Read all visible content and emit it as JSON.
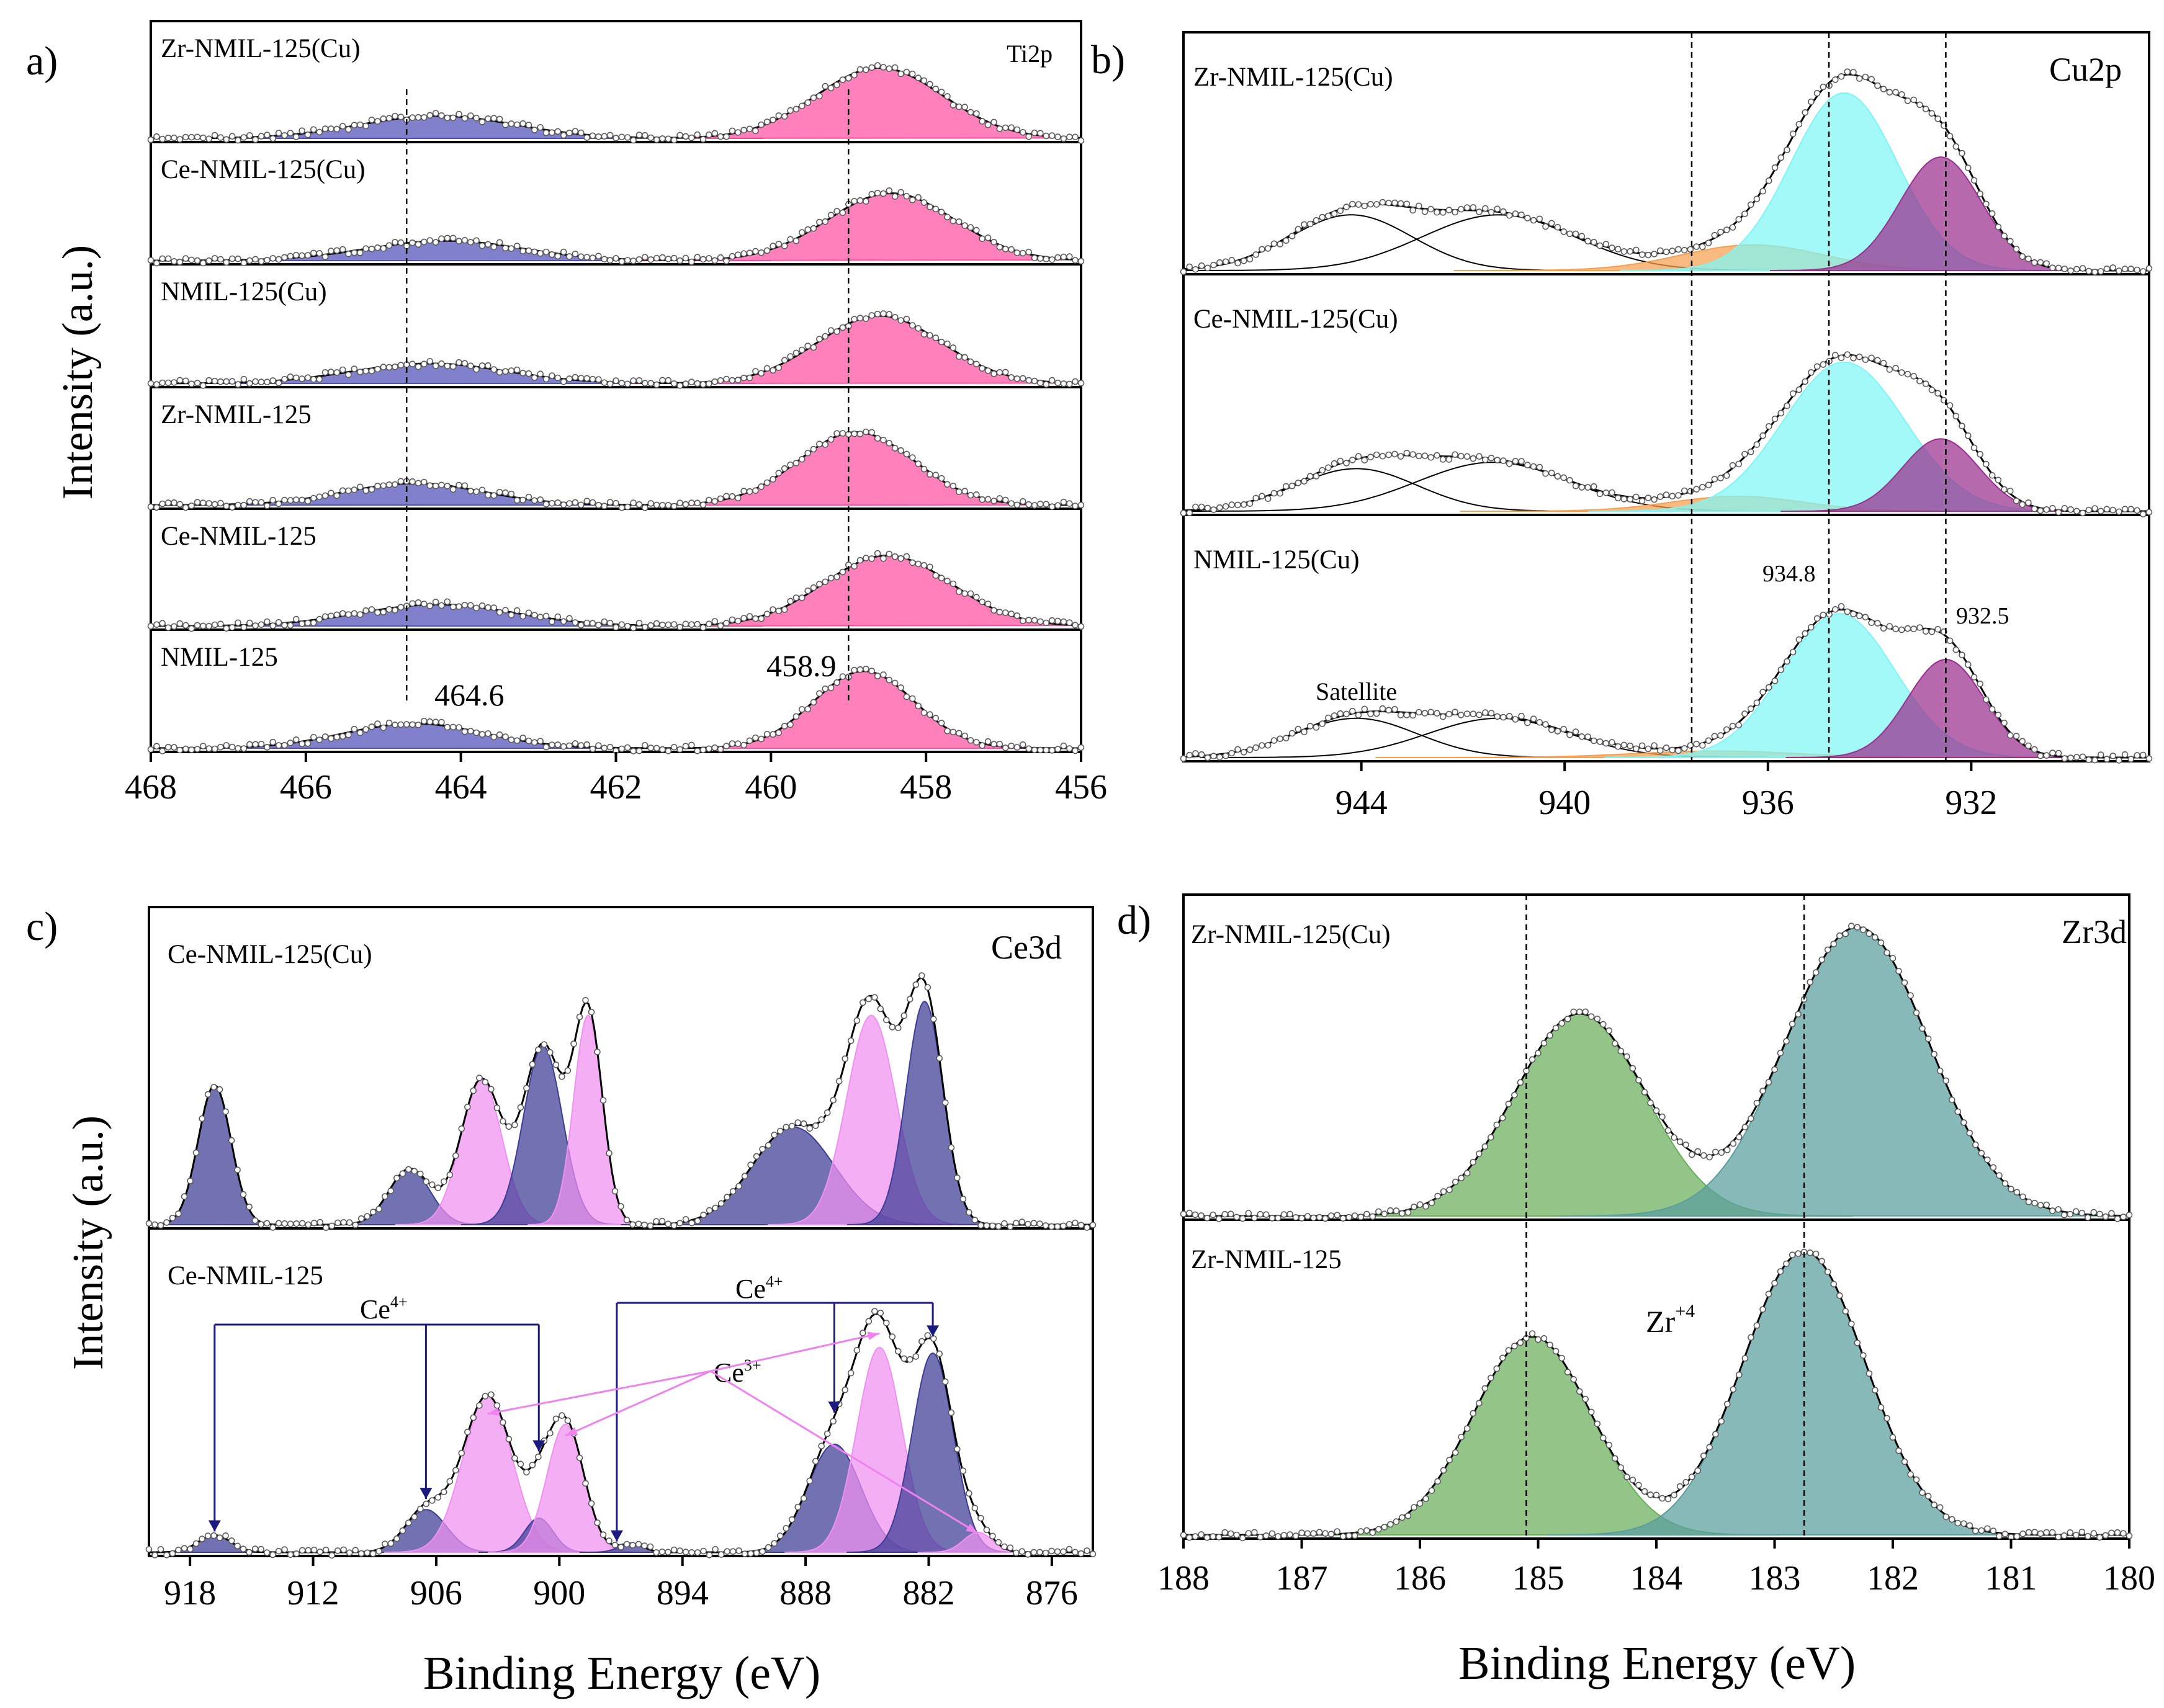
{
  "figure": {
    "axis_label": "Intensity (a.u.)",
    "x_label": "Binding Energy (eV)"
  },
  "chart_data": [
    {
      "id": "a",
      "type": "line",
      "panel_label": "a)",
      "element": "Ti2p",
      "xlabel": "",
      "ylabel": "Intensity (a.u.)",
      "xlim": [
        468,
        456
      ],
      "xticks": [
        468,
        466,
        464,
        462,
        460,
        458,
        456
      ],
      "series": [
        {
          "name": "Zr-NMIL-125(Cu)",
          "peaks": [
            {
              "center": 464.3,
              "height": 0.23,
              "sigma": 1.0,
              "color": "#4f4fb8"
            },
            {
              "center": 458.6,
              "height": 0.72,
              "sigma": 0.82,
              "color": "#ff4fa0"
            }
          ]
        },
        {
          "name": "Ce-NMIL-125(Cu)",
          "peaks": [
            {
              "center": 464.2,
              "height": 0.2,
              "sigma": 1.0,
              "color": "#4f4fb8"
            },
            {
              "center": 458.45,
              "height": 0.68,
              "sigma": 0.82,
              "color": "#ff4fa0"
            }
          ]
        },
        {
          "name": "NMIL-125(Cu)",
          "peaks": [
            {
              "center": 464.4,
              "height": 0.2,
              "sigma": 1.0,
              "color": "#4f4fb8"
            },
            {
              "center": 458.6,
              "height": 0.68,
              "sigma": 0.8,
              "color": "#ff4fa0"
            }
          ]
        },
        {
          "name": "Zr-NMIL-125",
          "peaks": [
            {
              "center": 464.6,
              "height": 0.22,
              "sigma": 0.9,
              "color": "#4f4fb8"
            },
            {
              "center": 458.9,
              "height": 0.74,
              "sigma": 0.75,
              "color": "#ff4fa0"
            }
          ]
        },
        {
          "name": "Ce-NMIL-125",
          "peaks": [
            {
              "center": 464.3,
              "height": 0.22,
              "sigma": 1.0,
              "color": "#4f4fb8"
            },
            {
              "center": 458.5,
              "height": 0.72,
              "sigma": 0.82,
              "color": "#ff4fa0"
            }
          ]
        },
        {
          "name": "NMIL-125",
          "peaks": [
            {
              "center": 464.6,
              "height": 0.25,
              "sigma": 0.9,
              "color": "#4f4fb8"
            },
            {
              "center": 458.8,
              "height": 0.78,
              "sigma": 0.65,
              "color": "#ff4fa0"
            }
          ]
        }
      ],
      "vlines": [
        464.7,
        459.0
      ],
      "annotations": [
        {
          "text": "464.6",
          "x": 464.5
        },
        {
          "text": "458.9",
          "x": 459.3
        }
      ]
    },
    {
      "id": "b",
      "type": "line",
      "panel_label": "b)",
      "element": "Cu2p",
      "xlabel": "",
      "ylabel": "",
      "xlim": [
        947.5,
        928.5
      ],
      "xticks": [
        944,
        940,
        936,
        932
      ],
      "series": [
        {
          "name": "Zr-NMIL-125(Cu)",
          "peaks": [
            {
              "center": 944.2,
              "height": 0.26,
              "sigma": 1.2,
              "color": "none"
            },
            {
              "center": 941.3,
              "height": 0.26,
              "sigma": 1.5,
              "color": "none"
            },
            {
              "center": 936.3,
              "height": 0.12,
              "sigma": 1.4,
              "color": "#f5a050"
            },
            {
              "center": 934.5,
              "height": 0.83,
              "sigma": 1.05,
              "color": "#7ff5f5"
            },
            {
              "center": 932.6,
              "height": 0.53,
              "sigma": 0.8,
              "color": "#9b2f8f"
            }
          ]
        },
        {
          "name": "Ce-NMIL-125(Cu)",
          "peaks": [
            {
              "center": 944.1,
              "height": 0.2,
              "sigma": 1.2,
              "color": "none"
            },
            {
              "center": 941.4,
              "height": 0.23,
              "sigma": 1.5,
              "color": "none"
            },
            {
              "center": 936.6,
              "height": 0.07,
              "sigma": 1.3,
              "color": "#f5a050"
            },
            {
              "center": 934.5,
              "height": 0.7,
              "sigma": 1.2,
              "color": "#7ff5f5"
            },
            {
              "center": 932.6,
              "height": 0.34,
              "sigma": 0.75,
              "color": "#9b2f8f"
            }
          ]
        },
        {
          "name": "NMIL-125(Cu)",
          "peaks": [
            {
              "center": 944.1,
              "height": 0.18,
              "sigma": 1.2,
              "color": "none"
            },
            {
              "center": 941.3,
              "height": 0.18,
              "sigma": 1.4,
              "color": "none"
            },
            {
              "center": 937.0,
              "height": 0.03,
              "sigma": 1.6,
              "color": "#f5a050"
            },
            {
              "center": 934.6,
              "height": 0.66,
              "sigma": 1.1,
              "color": "#7ff5f5"
            },
            {
              "center": 932.5,
              "height": 0.45,
              "sigma": 0.75,
              "color": "#9b2f8f"
            }
          ]
        }
      ],
      "vlines": [
        937.5,
        934.8,
        932.5
      ],
      "annotations": [
        {
          "text": "934.8",
          "x": 935.3
        },
        {
          "text": "932.5",
          "x": 931.2
        },
        {
          "text": "Satellite",
          "x": 942.8
        }
      ]
    },
    {
      "id": "c",
      "type": "line",
      "panel_label": "c)",
      "element": "Ce3d",
      "xlabel": "Binding Energy (eV)",
      "ylabel": "Intensity (a.u.)",
      "xlim": [
        920,
        874
      ],
      "xticks": [
        918,
        912,
        906,
        900,
        894,
        888,
        882,
        876
      ],
      "series": [
        {
          "name": "Ce-NMIL-125(Cu)",
          "peaks": [
            {
              "center": 916.8,
              "height": 0.5,
              "sigma": 0.8,
              "color": "#3c3c96"
            },
            {
              "center": 907.3,
              "height": 0.2,
              "sigma": 1.0,
              "color": "#3c3c96"
            },
            {
              "center": 903.8,
              "height": 0.52,
              "sigma": 1.0,
              "color": "#f090f0"
            },
            {
              "center": 900.8,
              "height": 0.64,
              "sigma": 0.95,
              "color": "#3c3c96"
            },
            {
              "center": 898.6,
              "height": 0.75,
              "sigma": 0.7,
              "color": "#f090f0"
            },
            {
              "center": 888.6,
              "height": 0.35,
              "sigma": 2.0,
              "color": "#3c3c96"
            },
            {
              "center": 884.8,
              "height": 0.75,
              "sigma": 1.2,
              "color": "#f090f0"
            },
            {
              "center": 882.2,
              "height": 0.8,
              "sigma": 0.9,
              "color": "#3c3c96"
            }
          ],
          "outline": "#8a2be2"
        },
        {
          "name": "Ce-NMIL-125",
          "peaks": [
            {
              "center": 916.8,
              "height": 0.06,
              "sigma": 0.8,
              "color": "#3c3c96"
            },
            {
              "center": 906.5,
              "height": 0.15,
              "sigma": 1.0,
              "color": "#3c3c96"
            },
            {
              "center": 903.5,
              "height": 0.55,
              "sigma": 1.2,
              "color": "#f090f0"
            },
            {
              "center": 901.0,
              "height": 0.12,
              "sigma": 0.7,
              "color": "#3c3c96"
            },
            {
              "center": 899.7,
              "height": 0.45,
              "sigma": 0.9,
              "color": "#f090f0"
            },
            {
              "center": 896.5,
              "height": 0.03,
              "sigma": 0.6,
              "color": "#3c3c96"
            },
            {
              "center": 886.6,
              "height": 0.38,
              "sigma": 1.3,
              "color": "#3c3c96"
            },
            {
              "center": 884.4,
              "height": 0.72,
              "sigma": 1.1,
              "color": "#f090f0"
            },
            {
              "center": 881.8,
              "height": 0.7,
              "sigma": 1.0,
              "color": "#3c3c96"
            },
            {
              "center": 879.6,
              "height": 0.07,
              "sigma": 0.7,
              "color": "#f090f0"
            }
          ],
          "outline": "#000000"
        }
      ],
      "annotations": [
        {
          "text": "Ce4+",
          "label": "Ce",
          "sup": "4+",
          "group": 1
        },
        {
          "text": "Ce4+",
          "label": "Ce",
          "sup": "4+",
          "group": 2
        },
        {
          "text": "Ce3+",
          "label": "Ce",
          "sup": "3+"
        }
      ],
      "ce4_groups": [
        [
          916.8,
          906.5,
          901.0
        ],
        [
          897.2,
          886.6,
          881.8
        ]
      ],
      "ce3_targets": [
        903.5,
        899.7,
        884.4,
        879.6
      ]
    },
    {
      "id": "d",
      "type": "line",
      "panel_label": "d)",
      "element": "Zr3d",
      "xlabel": "Binding Energy (eV)",
      "ylabel": "",
      "xlim": [
        188,
        180
      ],
      "xticks": [
        188,
        187,
        186,
        185,
        184,
        183,
        182,
        181,
        180
      ],
      "series": [
        {
          "name": "Zr-NMIL-125(Cu)",
          "peaks": [
            {
              "center": 184.65,
              "height": 0.7,
              "sigma": 0.55,
              "color": "#6aaf5a"
            },
            {
              "center": 182.3,
              "height": 1.0,
              "sigma": 0.6,
              "color": "#5a9e9e"
            }
          ]
        },
        {
          "name": "Zr-NMIL-125",
          "peaks": [
            {
              "center": 185.05,
              "height": 0.7,
              "sigma": 0.5,
              "color": "#6aaf5a"
            },
            {
              "center": 182.75,
              "height": 1.0,
              "sigma": 0.52,
              "color": "#5a9e9e"
            }
          ]
        }
      ],
      "vlines": [
        185.1,
        182.75
      ],
      "annotations": [
        {
          "text": "Zr+4",
          "label": "Zr",
          "sup": "+4"
        }
      ]
    }
  ]
}
